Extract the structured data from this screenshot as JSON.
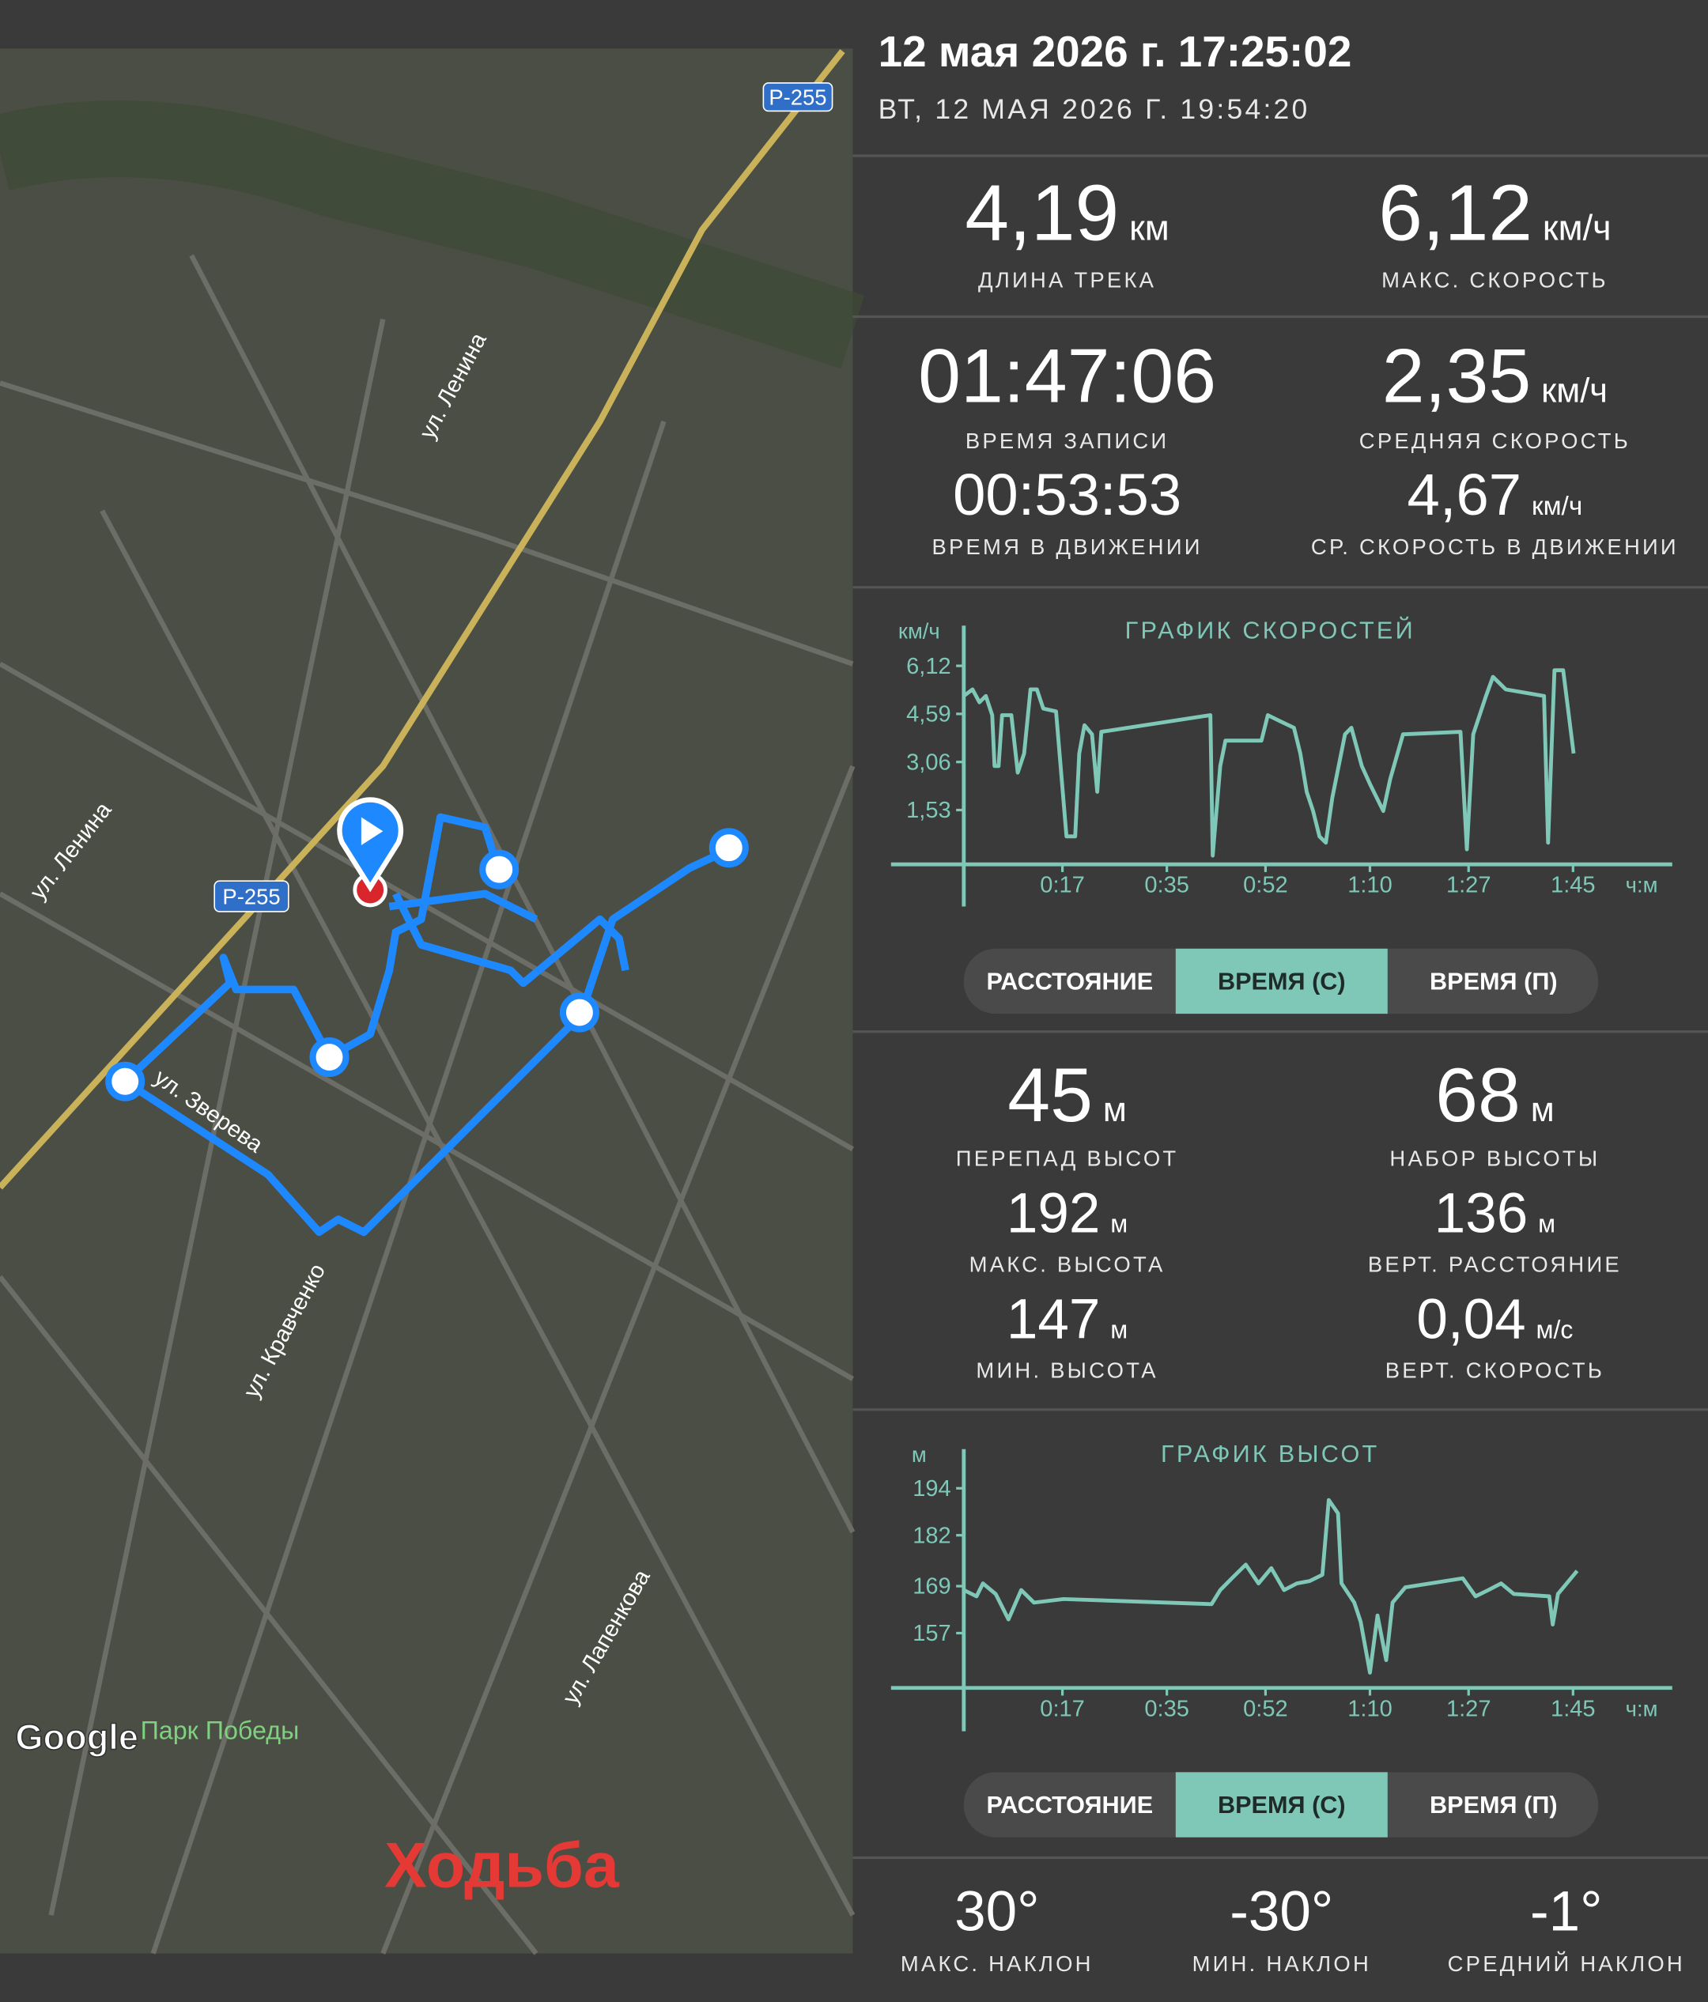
{
  "header": {
    "title": "12 мая 2026 г. 17:25:02",
    "subtitle": "ВТ, 12 МАЯ 2026 Г. 19:54:20"
  },
  "map": {
    "labels": [
      "Р-255",
      "Р-255",
      "ул. Ленина",
      "ул. Ленина",
      "ул. Зверева",
      "ул. Кравченко",
      "ул. Лапенкова",
      "Google",
      "Парк Победы"
    ],
    "activity": "Ходьба"
  },
  "stats": {
    "track": [
      {
        "value": "4,19",
        "unit": "км",
        "label": "ДЛИНА ТРЕКА"
      },
      {
        "value": "6,12",
        "unit": "км/ч",
        "label": "МАКС. СКОРОСТЬ"
      }
    ],
    "time": [
      {
        "value": "01:47:06",
        "label": "ВРЕМЯ ЗАПИСИ"
      },
      {
        "value": "2,35",
        "unit": "км/ч",
        "label": "СРЕДНЯЯ СКОРОСТЬ"
      },
      {
        "value": "00:53:53",
        "label": "ВРЕМЯ В ДВИЖЕНИИ"
      },
      {
        "value": "4,67",
        "unit": "км/ч",
        "label": "СР. СКОРОСТЬ В ДВИЖЕНИИ"
      }
    ],
    "elevation": [
      {
        "value": "45",
        "unit": "м",
        "label": "ПЕРЕПАД ВЫСОТ"
      },
      {
        "value": "68",
        "unit": "м",
        "label": "НАБОР ВЫСОТЫ"
      },
      {
        "value": "192",
        "unit": "м",
        "label": "МАКС. ВЫСОТА"
      },
      {
        "value": "136",
        "unit": "м",
        "label": "ВЕРТ. РАССТОЯНИЕ"
      },
      {
        "value": "147",
        "unit": "м",
        "label": "МИН. ВЫСОТА"
      },
      {
        "value": "0,04",
        "unit": "м/с",
        "label": "ВЕРТ. СКОРОСТЬ"
      }
    ],
    "slope": [
      {
        "value": "30°",
        "label": "МАКС. НАКЛОН"
      },
      {
        "value": "-30°",
        "label": "МИН. НАКЛОН"
      },
      {
        "value": "-1°",
        "label": "СРЕДНИЙ НАКЛОН"
      }
    ]
  },
  "toggles": [
    {
      "options": [
        "РАССТОЯНИЕ",
        "ВРЕМЯ (С)",
        "ВРЕМЯ (П)"
      ],
      "selected": 1
    },
    {
      "options": [
        "РАССТОЯНИЕ",
        "ВРЕМЯ (С)",
        "ВРЕМЯ (П)"
      ],
      "selected": 1
    }
  ],
  "chart_data": [
    {
      "type": "line",
      "title": "ГРАФИК СКОРОСТЕЙ",
      "y_label": "км/ч",
      "x_label": "ч:м",
      "xlim": [
        0,
        121
      ],
      "ylim": [
        -0.2,
        7.4
      ],
      "xticks": [
        {
          "value": 17,
          "label": "0:17"
        },
        {
          "value": 35,
          "label": "0:35"
        },
        {
          "value": 52,
          "label": "0:52"
        },
        {
          "value": 70,
          "label": "1:10"
        },
        {
          "value": 87,
          "label": "1:27"
        },
        {
          "value": 105,
          "label": "1:45"
        }
      ],
      "yticks": [
        {
          "value": 1.53,
          "label": "1,53"
        },
        {
          "value": 3.06,
          "label": "3,06"
        },
        {
          "value": 4.59,
          "label": "4,59"
        },
        {
          "value": 6.12,
          "label": "6,12"
        }
      ],
      "x": [
        0.0,
        1.5,
        2.7,
        3.8,
        4.9,
        5.3,
        6.0,
        6.6,
        8.2,
        9.3,
        10.4,
        11.5,
        12.6,
        13.7,
        15.9,
        17.7,
        19.2,
        19.9,
        20.8,
        22.1,
        23.0,
        23.7,
        42.5,
        42.9,
        44.2,
        45.1,
        51.3,
        52.4,
        54.6,
        56.9,
        58.0,
        59.1,
        60.2,
        61.3,
        62.4,
        63.5,
        65.7,
        66.8,
        68.6,
        70.1,
        72.3,
        73.5,
        75.7,
        85.6,
        86.7,
        87.8,
        90.0,
        91.2,
        93.4,
        100.0,
        100.7,
        101.8,
        103.3,
        105.1
      ],
      "series": [
        {
          "color": "#7fc8b8",
          "values": [
            5.16,
            5.37,
            4.96,
            5.16,
            4.55,
            2.93,
            2.93,
            4.55,
            4.55,
            2.72,
            3.33,
            5.37,
            5.37,
            4.76,
            4.67,
            0.69,
            0.69,
            3.33,
            4.23,
            3.94,
            2.11,
            4.02,
            4.55,
            0.08,
            2.93,
            3.74,
            3.74,
            4.55,
            4.35,
            4.15,
            3.33,
            2.11,
            1.5,
            0.69,
            0.49,
            1.91,
            3.94,
            4.15,
            2.93,
            2.32,
            1.5,
            2.52,
            3.94,
            4.02,
            0.28,
            3.94,
            5.16,
            5.77,
            5.37,
            5.16,
            0.49,
            5.98,
            5.98,
            3.33
          ]
        }
      ]
    },
    {
      "type": "line",
      "title": "ГРАФИК ВЫСОТ",
      "y_label": "м",
      "x_label": "ч:м",
      "xlim": [
        0,
        121
      ],
      "ylim": [
        143,
        204
      ],
      "xticks": [
        {
          "value": 17,
          "label": "0:17"
        },
        {
          "value": 35,
          "label": "0:35"
        },
        {
          "value": 52,
          "label": "0:52"
        },
        {
          "value": 70,
          "label": "1:10"
        },
        {
          "value": 87,
          "label": "1:27"
        },
        {
          "value": 105,
          "label": "1:45"
        }
      ],
      "yticks": [
        157,
        169,
        182,
        194
      ],
      "x": [
        0.0,
        2.2,
        3.3,
        5.5,
        7.7,
        9.9,
        12.1,
        17.2,
        42.7,
        44.2,
        46.4,
        48.6,
        50.8,
        53.0,
        55.2,
        57.4,
        59.6,
        61.8,
        62.9,
        64.5,
        65.1,
        67.3,
        68.4,
        70.0,
        71.3,
        72.8,
        73.9,
        76.1,
        86.0,
        88.2,
        90.4,
        92.6,
        94.8,
        100.9,
        101.5,
        102.4,
        105.7
      ],
      "series": [
        {
          "color": "#7fc8b8",
          "values": [
            168.0,
            166.4,
            169.7,
            167.0,
            160.5,
            168.0,
            164.8,
            165.7,
            164.4,
            168.0,
            171.3,
            174.5,
            169.7,
            173.6,
            168.0,
            169.7,
            170.3,
            171.9,
            191.0,
            187.6,
            169.7,
            164.8,
            159.9,
            146.9,
            161.5,
            150.1,
            164.8,
            168.7,
            171.0,
            166.4,
            168.0,
            169.7,
            167.0,
            166.4,
            159.2,
            167.0,
            172.9
          ]
        }
      ]
    }
  ]
}
